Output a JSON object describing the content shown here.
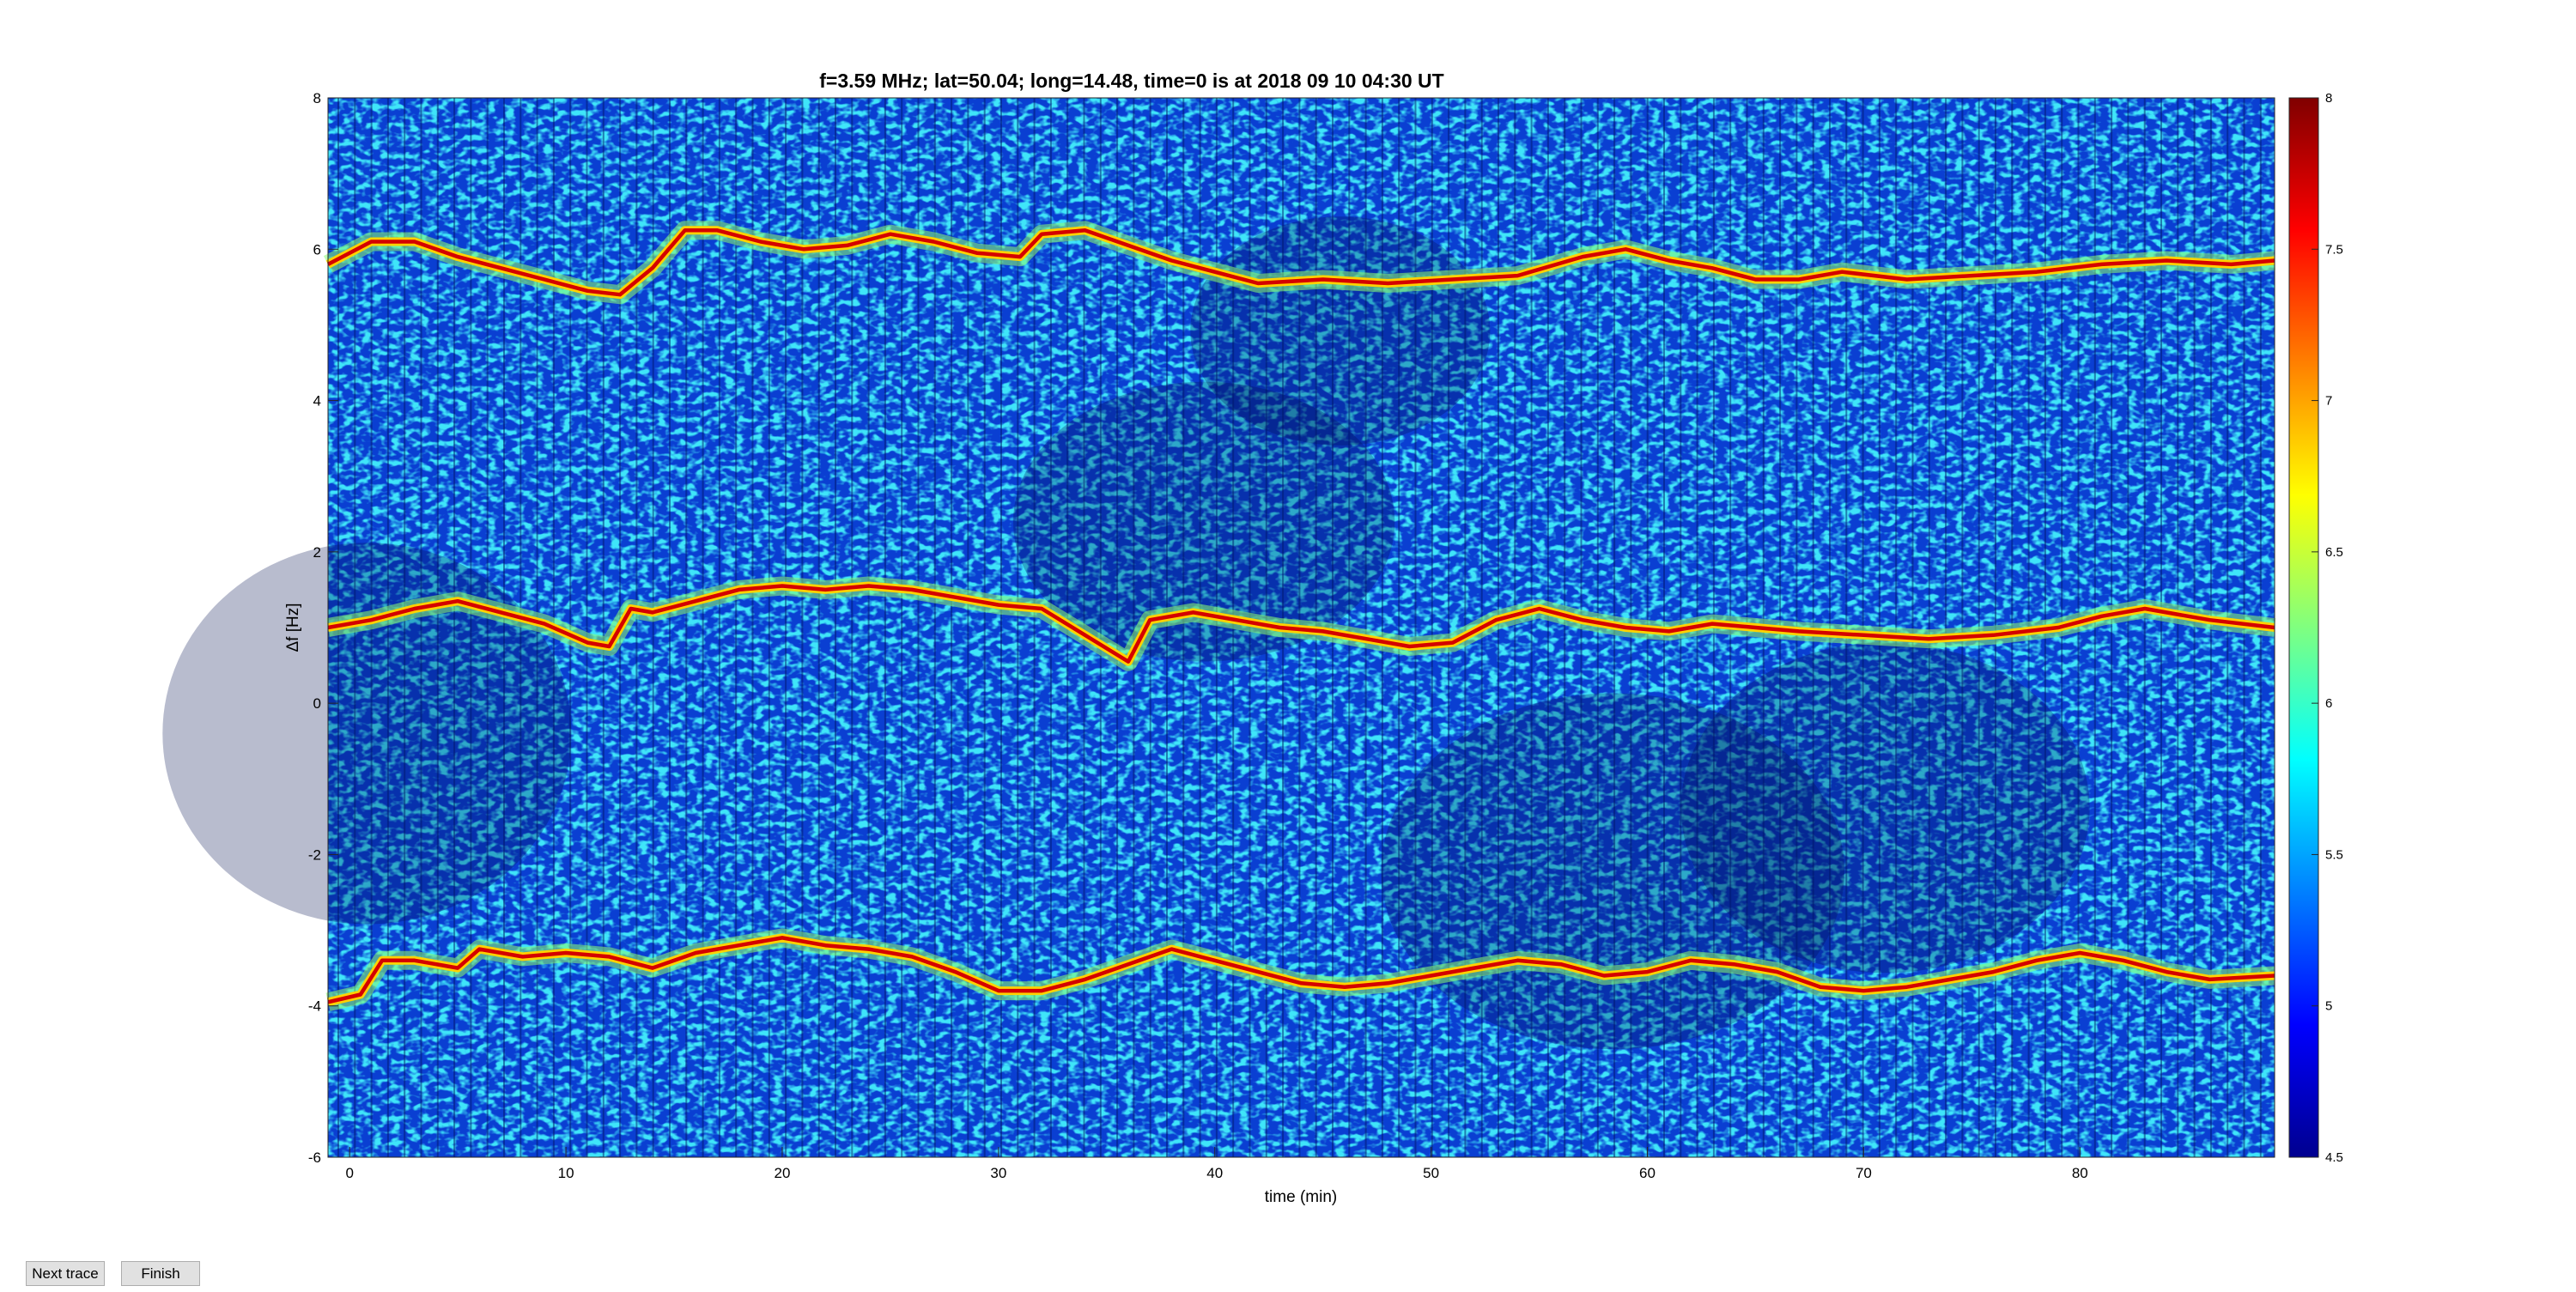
{
  "window": {
    "buttons": {
      "next_trace": "Next trace",
      "finish": "Finish"
    }
  },
  "chart_data": {
    "type": "heatmap",
    "title": "f=3.59 MHz;  lat=50.04; long=14.48, time=0 is at 2018 09 10 04:30 UT",
    "xlabel": "time (min)",
    "ylabel": "Δf [Hz]",
    "xlim": [
      -1,
      89
    ],
    "ylim": [
      -6,
      8
    ],
    "x_ticks": [
      0,
      10,
      20,
      30,
      40,
      50,
      60,
      70,
      80
    ],
    "y_ticks": [
      -6,
      -4,
      -2,
      0,
      2,
      4,
      6,
      8
    ],
    "colorbar": {
      "range": [
        4.5,
        8
      ],
      "ticks": [
        "4.5",
        "5",
        "5.5",
        "6",
        "6.5",
        "7",
        "7.5",
        "8"
      ],
      "colormap": "jet"
    },
    "grid": false,
    "traces": [
      {
        "points": [
          [
            -1,
            5.8
          ],
          [
            1,
            6.1
          ],
          [
            3,
            6.1
          ],
          [
            5,
            5.9
          ],
          [
            7,
            5.75
          ],
          [
            9,
            5.6
          ],
          [
            11,
            5.45
          ],
          [
            12.5,
            5.4
          ],
          [
            14,
            5.75
          ],
          [
            15.5,
            6.25
          ],
          [
            17,
            6.25
          ],
          [
            19,
            6.1
          ],
          [
            21,
            6.0
          ],
          [
            23,
            6.05
          ],
          [
            25,
            6.2
          ],
          [
            27,
            6.1
          ],
          [
            29,
            5.95
          ],
          [
            31,
            5.9
          ],
          [
            32,
            6.2
          ],
          [
            34,
            6.25
          ],
          [
            36,
            6.05
          ],
          [
            38,
            5.85
          ],
          [
            40,
            5.7
          ],
          [
            42,
            5.55
          ],
          [
            45,
            5.6
          ],
          [
            48,
            5.55
          ],
          [
            51,
            5.6
          ],
          [
            54,
            5.65
          ],
          [
            57,
            5.9
          ],
          [
            59,
            6.0
          ],
          [
            61,
            5.85
          ],
          [
            63,
            5.75
          ],
          [
            65,
            5.6
          ],
          [
            67,
            5.6
          ],
          [
            69,
            5.7
          ],
          [
            72,
            5.6
          ],
          [
            75,
            5.65
          ],
          [
            78,
            5.7
          ],
          [
            81,
            5.8
          ],
          [
            84,
            5.85
          ],
          [
            87,
            5.8
          ],
          [
            89,
            5.85
          ]
        ]
      },
      {
        "points": [
          [
            -1,
            1.0
          ],
          [
            1,
            1.1
          ],
          [
            3,
            1.25
          ],
          [
            5,
            1.35
          ],
          [
            7,
            1.2
          ],
          [
            9,
            1.05
          ],
          [
            11,
            0.8
          ],
          [
            12,
            0.75
          ],
          [
            13,
            1.25
          ],
          [
            14,
            1.2
          ],
          [
            16,
            1.35
          ],
          [
            18,
            1.5
          ],
          [
            20,
            1.55
          ],
          [
            22,
            1.5
          ],
          [
            24,
            1.55
          ],
          [
            26,
            1.5
          ],
          [
            28,
            1.4
          ],
          [
            30,
            1.3
          ],
          [
            32,
            1.25
          ],
          [
            34,
            0.9
          ],
          [
            36,
            0.55
          ],
          [
            37,
            1.1
          ],
          [
            39,
            1.2
          ],
          [
            41,
            1.1
          ],
          [
            43,
            1.0
          ],
          [
            45,
            0.95
          ],
          [
            47,
            0.85
          ],
          [
            49,
            0.75
          ],
          [
            51,
            0.8
          ],
          [
            53,
            1.1
          ],
          [
            55,
            1.25
          ],
          [
            57,
            1.1
          ],
          [
            59,
            1.0
          ],
          [
            61,
            0.95
          ],
          [
            63,
            1.05
          ],
          [
            65,
            1.0
          ],
          [
            67,
            0.95
          ],
          [
            70,
            0.9
          ],
          [
            73,
            0.85
          ],
          [
            76,
            0.9
          ],
          [
            79,
            1.0
          ],
          [
            81,
            1.15
          ],
          [
            83,
            1.25
          ],
          [
            86,
            1.1
          ],
          [
            89,
            1.0
          ]
        ]
      },
      {
        "points": [
          [
            -1,
            -3.95
          ],
          [
            0.5,
            -3.85
          ],
          [
            1.5,
            -3.4
          ],
          [
            3,
            -3.4
          ],
          [
            5,
            -3.5
          ],
          [
            6,
            -3.25
          ],
          [
            8,
            -3.35
          ],
          [
            10,
            -3.3
          ],
          [
            12,
            -3.35
          ],
          [
            14,
            -3.5
          ],
          [
            16,
            -3.3
          ],
          [
            18,
            -3.2
          ],
          [
            20,
            -3.1
          ],
          [
            22,
            -3.2
          ],
          [
            24,
            -3.25
          ],
          [
            26,
            -3.35
          ],
          [
            28,
            -3.55
          ],
          [
            30,
            -3.8
          ],
          [
            32,
            -3.8
          ],
          [
            34,
            -3.65
          ],
          [
            36,
            -3.45
          ],
          [
            38,
            -3.25
          ],
          [
            40,
            -3.4
          ],
          [
            42,
            -3.55
          ],
          [
            44,
            -3.7
          ],
          [
            46,
            -3.75
          ],
          [
            48,
            -3.7
          ],
          [
            50,
            -3.6
          ],
          [
            52,
            -3.5
          ],
          [
            54,
            -3.4
          ],
          [
            56,
            -3.45
          ],
          [
            58,
            -3.6
          ],
          [
            60,
            -3.55
          ],
          [
            62,
            -3.4
          ],
          [
            64,
            -3.45
          ],
          [
            66,
            -3.55
          ],
          [
            68,
            -3.75
          ],
          [
            70,
            -3.8
          ],
          [
            72,
            -3.75
          ],
          [
            74,
            -3.65
          ],
          [
            76,
            -3.55
          ],
          [
            78,
            -3.4
          ],
          [
            80,
            -3.3
          ],
          [
            82,
            -3.4
          ],
          [
            84,
            -3.55
          ],
          [
            86,
            -3.65
          ],
          [
            89,
            -3.6
          ]
        ]
      }
    ]
  }
}
